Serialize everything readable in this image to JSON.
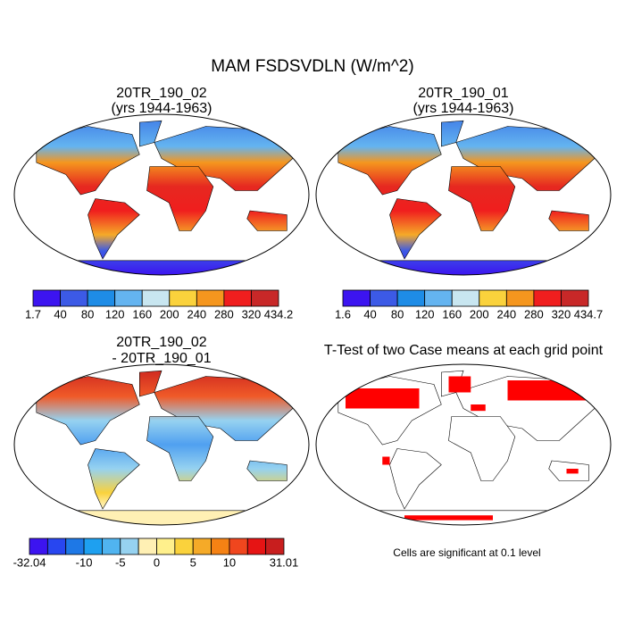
{
  "title": "MAM FSDSVDLN (W/m^2)",
  "panels": [
    {
      "lines": [
        "20TR_190_02",
        "(yrs 1944-1963)"
      ]
    },
    {
      "lines": [
        "20TR_190_01",
        "(yrs 1944-1963)"
      ]
    },
    {
      "lines": [
        "20TR_190_02",
        "- 20TR_190_01"
      ]
    },
    {
      "lines": [
        "T-Test of two Case means at each grid point"
      ]
    }
  ],
  "colorbars": [
    {
      "labels": [
        "1.7",
        "40",
        "80",
        "120",
        "160",
        "200",
        "240",
        "280",
        "320",
        "434.2"
      ],
      "colors": [
        "#3c14f0",
        "#3c5ae6",
        "#1e8ce6",
        "#64b4f0",
        "#c8e6f0",
        "#fad23c",
        "#f5961e",
        "#f01e1e",
        "#c82828"
      ]
    },
    {
      "labels": [
        "1.6",
        "40",
        "80",
        "120",
        "160",
        "200",
        "240",
        "280",
        "320",
        "434.7"
      ],
      "colors": [
        "#3c14f0",
        "#3c5ae6",
        "#1e8ce6",
        "#64b4f0",
        "#c8e6f0",
        "#fad23c",
        "#f5961e",
        "#f01e1e",
        "#c82828"
      ]
    },
    {
      "labels": [
        "-32.04",
        "-10",
        "-5",
        "0",
        "5",
        "10",
        "31.01"
      ],
      "colors": [
        "#3c14f0",
        "#2846f0",
        "#1e78e6",
        "#1ea0f0",
        "#50b4f0",
        "#96d2f0",
        "#fff0b4",
        "#fff08c",
        "#fad23c",
        "#f5aa28",
        "#f58214",
        "#f0461e",
        "#e61414",
        "#c81e1e"
      ]
    }
  ],
  "note": "Cells are significant at 0.1 level"
}
